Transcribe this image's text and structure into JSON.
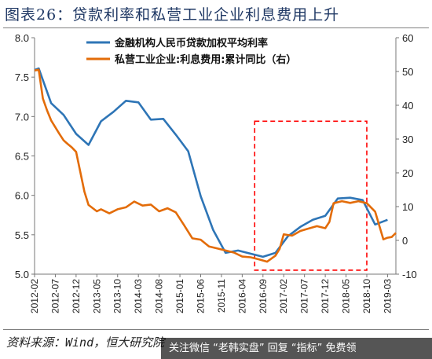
{
  "figure": {
    "title": "图表26：贷款利率和私营工业企业利息费用上升",
    "source": "资料来源：Wind，恒大研究院",
    "watermark_text": "关注微信 “老韩实盘” 回复 “指标” 免费领"
  },
  "chart_data": {
    "type": "line",
    "x_tick_labels": [
      "2012-02",
      "2012-07",
      "2012-12",
      "2013-05",
      "2013-10",
      "2014-03",
      "2014-08",
      "2015-01",
      "2015-06",
      "2015-11",
      "2016-04",
      "2016-09",
      "2017-02",
      "2017-07",
      "2017-12",
      "2018-05",
      "2018-10",
      "2019-03"
    ],
    "x_range": [
      "2012-02",
      "2019-05"
    ],
    "y_left": {
      "min": 5.0,
      "max": 8.0,
      "ticks": [
        5.0,
        5.5,
        6.0,
        6.5,
        7.0,
        7.5,
        8.0
      ]
    },
    "y_right": {
      "min": -10,
      "max": 60,
      "ticks": [
        -10,
        0,
        10,
        20,
        30,
        40,
        50,
        60
      ]
    },
    "legend_position": "top-center",
    "grid": false,
    "series": [
      {
        "name": "金融机构人民币贷款加权平均利率",
        "axis": "left",
        "color": "#2e75b6",
        "points": [
          [
            "2012-02",
            7.59
          ],
          [
            "2012-03",
            7.61
          ],
          [
            "2012-06",
            7.17
          ],
          [
            "2012-09",
            7.02
          ],
          [
            "2012-12",
            6.78
          ],
          [
            "2013-03",
            6.64
          ],
          [
            "2013-06",
            6.94
          ],
          [
            "2013-09",
            7.06
          ],
          [
            "2013-12",
            7.2
          ],
          [
            "2014-03",
            7.18
          ],
          [
            "2014-06",
            6.96
          ],
          [
            "2014-09",
            6.97
          ],
          [
            "2014-12",
            6.77
          ],
          [
            "2015-03",
            6.56
          ],
          [
            "2015-06",
            5.99
          ],
          [
            "2015-09",
            5.56
          ],
          [
            "2015-12",
            5.27
          ],
          [
            "2016-03",
            5.3
          ],
          [
            "2016-06",
            5.26
          ],
          [
            "2016-09",
            5.22
          ],
          [
            "2016-12",
            5.27
          ],
          [
            "2017-03",
            5.48
          ],
          [
            "2017-06",
            5.6
          ],
          [
            "2017-09",
            5.69
          ],
          [
            "2017-12",
            5.74
          ],
          [
            "2018-03",
            5.96
          ],
          [
            "2018-06",
            5.97
          ],
          [
            "2018-09",
            5.94
          ],
          [
            "2018-12",
            5.63
          ],
          [
            "2019-03",
            5.69
          ]
        ]
      },
      {
        "name": "私营工业企业:利息费用:累计同比（右）",
        "axis": "right",
        "color": "#e36c09",
        "points": [
          [
            "2012-02",
            50.3
          ],
          [
            "2012-03",
            50.5
          ],
          [
            "2012-04",
            42.0
          ],
          [
            "2012-05",
            38.5
          ],
          [
            "2012-06",
            35.5
          ],
          [
            "2012-07",
            33.5
          ],
          [
            "2012-08",
            31.5
          ],
          [
            "2012-09",
            29.6
          ],
          [
            "2012-10",
            28.5
          ],
          [
            "2012-11",
            27.5
          ],
          [
            "2012-12",
            26.2
          ],
          [
            "2013-02",
            14.5
          ],
          [
            "2013-03",
            10.5
          ],
          [
            "2013-05",
            8.6
          ],
          [
            "2013-06",
            9.2
          ],
          [
            "2013-08",
            8.0
          ],
          [
            "2013-10",
            9.2
          ],
          [
            "2013-12",
            9.8
          ],
          [
            "2014-02",
            11.5
          ],
          [
            "2014-04",
            10.3
          ],
          [
            "2014-06",
            10.6
          ],
          [
            "2014-08",
            8.6
          ],
          [
            "2014-10",
            9.5
          ],
          [
            "2014-12",
            8.3
          ],
          [
            "2015-02",
            4.5
          ],
          [
            "2015-04",
            0.6
          ],
          [
            "2015-06",
            0.2
          ],
          [
            "2015-08",
            -1.8
          ],
          [
            "2015-10",
            -2.4
          ],
          [
            "2015-12",
            -3.0
          ],
          [
            "2016-02",
            -3.6
          ],
          [
            "2016-04",
            -4.8
          ],
          [
            "2016-06",
            -5.0
          ],
          [
            "2016-08",
            -5.6
          ],
          [
            "2016-10",
            -6.3
          ],
          [
            "2016-12",
            -4.5
          ],
          [
            "2017-01",
            -2.5
          ],
          [
            "2017-02",
            1.8
          ],
          [
            "2017-04",
            1.4
          ],
          [
            "2017-06",
            2.8
          ],
          [
            "2017-08",
            3.5
          ],
          [
            "2017-10",
            4.2
          ],
          [
            "2017-12",
            3.6
          ],
          [
            "2018-01",
            5.5
          ],
          [
            "2018-02",
            11.0
          ],
          [
            "2018-04",
            11.6
          ],
          [
            "2018-06",
            11.1
          ],
          [
            "2018-08",
            11.6
          ],
          [
            "2018-10",
            11.0
          ],
          [
            "2018-12",
            8.5
          ],
          [
            "2019-02",
            0.3
          ],
          [
            "2019-03",
            0.8
          ],
          [
            "2019-04",
            1.0
          ],
          [
            "2019-05",
            2.2
          ]
        ]
      }
    ],
    "annotation_box": {
      "style": "dashed",
      "color": "#ff0000",
      "x_from": "2016-07",
      "x_to": "2018-10",
      "y_left_from": 5.05,
      "y_left_to": 6.94
    }
  }
}
